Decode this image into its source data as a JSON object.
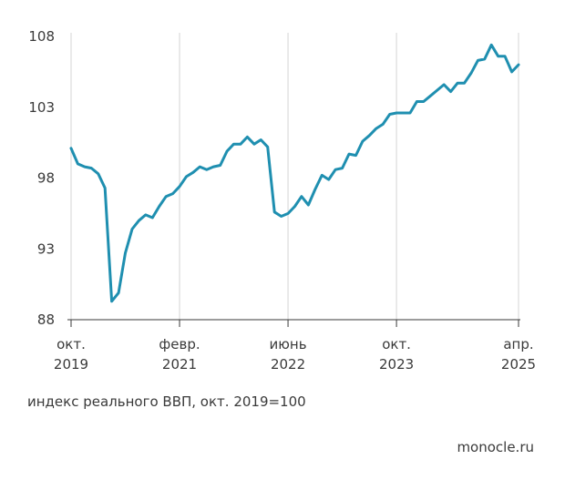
{
  "chart_data": {
    "type": "line",
    "title": "",
    "caption": "индекс реального ВВП, окт. 2019=100",
    "ylim": [
      88,
      108
    ],
    "yticks": [
      "108",
      "103",
      "98",
      "93",
      "88"
    ],
    "ytick_values": [
      108,
      103,
      98,
      93,
      88
    ],
    "x_ticks": [
      {
        "line1": "окт.",
        "line2": "2019",
        "index": 0
      },
      {
        "line1": "февр.",
        "line2": "2021",
        "index": 16
      },
      {
        "line1": "июнь",
        "line2": "2022",
        "index": 32
      },
      {
        "line1": "окт.",
        "line2": "2023",
        "index": 48
      },
      {
        "line1": "апр.",
        "line2": "2025",
        "index": 66
      }
    ],
    "grid": "vertical",
    "line_color": "#1f8fb0",
    "series": [
      {
        "values": [
          100.1,
          99.0,
          98.8,
          98.7,
          98.3,
          97.3,
          89.3,
          89.9,
          92.7,
          94.4,
          95.0,
          95.4,
          95.2,
          96.0,
          96.7,
          96.9,
          97.4,
          98.1,
          98.4,
          98.8,
          98.6,
          98.8,
          98.9,
          99.9,
          100.4,
          100.4,
          100.9,
          100.4,
          100.7,
          100.2,
          95.6,
          95.3,
          95.5,
          96.0,
          96.7,
          96.1,
          97.2,
          98.2,
          97.9,
          98.6,
          98.7,
          99.7,
          99.6,
          100.6,
          101.0,
          101.5,
          101.8,
          102.5,
          102.6,
          102.6,
          102.6,
          103.4,
          103.4,
          103.8,
          104.2,
          104.6,
          104.1,
          104.7,
          104.7,
          105.4,
          106.3,
          106.4,
          107.4,
          106.6,
          106.6,
          105.5,
          106.0
        ]
      }
    ]
  },
  "source": "monocle.ru"
}
